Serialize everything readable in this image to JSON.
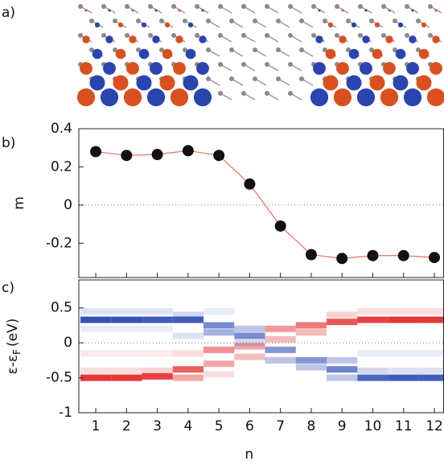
{
  "panels": [
    "a)",
    "b)",
    "c)"
  ],
  "chart_data": [
    {
      "type": "line",
      "ylabel": "m",
      "x": [
        1,
        2,
        3,
        4,
        5,
        6,
        7,
        8,
        9,
        10,
        11,
        12
      ],
      "values": [
        0.28,
        0.26,
        0.265,
        0.285,
        0.26,
        0.11,
        -0.11,
        -0.26,
        -0.28,
        -0.265,
        -0.265,
        -0.275
      ],
      "color": "#e87060",
      "marker_color": "#111111",
      "xlim": [
        0.45,
        12.3
      ],
      "ylim": [
        -0.38,
        0.4
      ],
      "yticks": [
        {
          "value": 0.4,
          "label": "0.4"
        },
        {
          "value": 0.2,
          "label": "0.2"
        },
        0,
        {
          "value": -0.2,
          "label": "-0.2"
        }
      ]
    },
    {
      "type": "heatmap",
      "ylabel": "ε-ε",
      "ylabel_sub": "F",
      "ylabel_unit": "(eV)",
      "xlabel": "n",
      "x": [
        1,
        2,
        3,
        4,
        5,
        6,
        7,
        8,
        9,
        10,
        11,
        12
      ],
      "levels": [
        [
          [
            0.33,
            -0.9
          ],
          [
            0.45,
            -0.15
          ],
          [
            0.2,
            -0.1
          ],
          [
            -0.5,
            0.9
          ],
          [
            -0.4,
            0.15
          ],
          [
            -0.15,
            0.1
          ]
        ],
        [
          [
            0.33,
            -0.9
          ],
          [
            0.45,
            -0.15
          ],
          [
            0.2,
            -0.1
          ],
          [
            -0.5,
            0.9
          ],
          [
            -0.4,
            0.15
          ],
          [
            -0.15,
            0.1
          ]
        ],
        [
          [
            0.33,
            -0.85
          ],
          [
            0.45,
            -0.15
          ],
          [
            0.2,
            -0.1
          ],
          [
            -0.48,
            0.85
          ],
          [
            -0.4,
            0.2
          ],
          [
            -0.15,
            0.1
          ]
        ],
        [
          [
            0.33,
            -0.85
          ],
          [
            0.4,
            -0.2
          ],
          [
            0.1,
            -0.15
          ],
          [
            -0.38,
            0.7
          ],
          [
            -0.5,
            0.4
          ],
          [
            -0.15,
            0.15
          ]
        ],
        [
          [
            0.25,
            -0.6
          ],
          [
            0.15,
            -0.4
          ],
          [
            0.45,
            -0.1
          ],
          [
            -0.1,
            0.5
          ],
          [
            -0.3,
            0.4
          ],
          [
            -0.45,
            0.15
          ]
        ],
        [
          [
            0.1,
            -0.6
          ],
          [
            0.2,
            -0.3
          ],
          [
            0.0,
            -0.2
          ],
          [
            -0.05,
            0.4
          ],
          [
            -0.2,
            0.3
          ]
        ],
        [
          [
            0.2,
            0.45
          ],
          [
            0.05,
            0.3
          ],
          [
            -0.1,
            -0.55
          ],
          [
            -0.25,
            -0.3
          ]
        ],
        [
          [
            0.25,
            0.6
          ],
          [
            0.15,
            0.3
          ],
          [
            -0.25,
            -0.55
          ],
          [
            -0.35,
            -0.3
          ]
        ],
        [
          [
            0.3,
            0.75
          ],
          [
            0.4,
            0.2
          ],
          [
            -0.38,
            -0.65
          ],
          [
            -0.25,
            -0.3
          ],
          [
            -0.5,
            -0.3
          ]
        ],
        [
          [
            0.33,
            0.85
          ],
          [
            0.45,
            0.15
          ],
          [
            -0.5,
            -0.8
          ],
          [
            -0.4,
            -0.2
          ],
          [
            -0.15,
            -0.1
          ]
        ],
        [
          [
            0.33,
            0.9
          ],
          [
            0.45,
            0.15
          ],
          [
            -0.5,
            -0.85
          ],
          [
            -0.4,
            -0.15
          ],
          [
            -0.15,
            -0.1
          ]
        ],
        [
          [
            0.33,
            0.9
          ],
          [
            0.45,
            0.15
          ],
          [
            -0.5,
            -0.85
          ],
          [
            -0.4,
            -0.15
          ],
          [
            -0.15,
            -0.1
          ]
        ]
      ],
      "positive_color": "#e02020",
      "negative_color": "#2040b0",
      "xlim": [
        0.45,
        12.3
      ],
      "ylim": [
        -1,
        0.9
      ],
      "xticks": [
        1,
        2,
        3,
        4,
        5,
        6,
        7,
        8,
        9,
        10,
        11,
        12
      ],
      "yticks": [
        {
          "value": 0.5,
          "label": "0.5"
        },
        0,
        {
          "value": -0.5,
          "label": "-0.5"
        },
        -1
      ]
    }
  ]
}
